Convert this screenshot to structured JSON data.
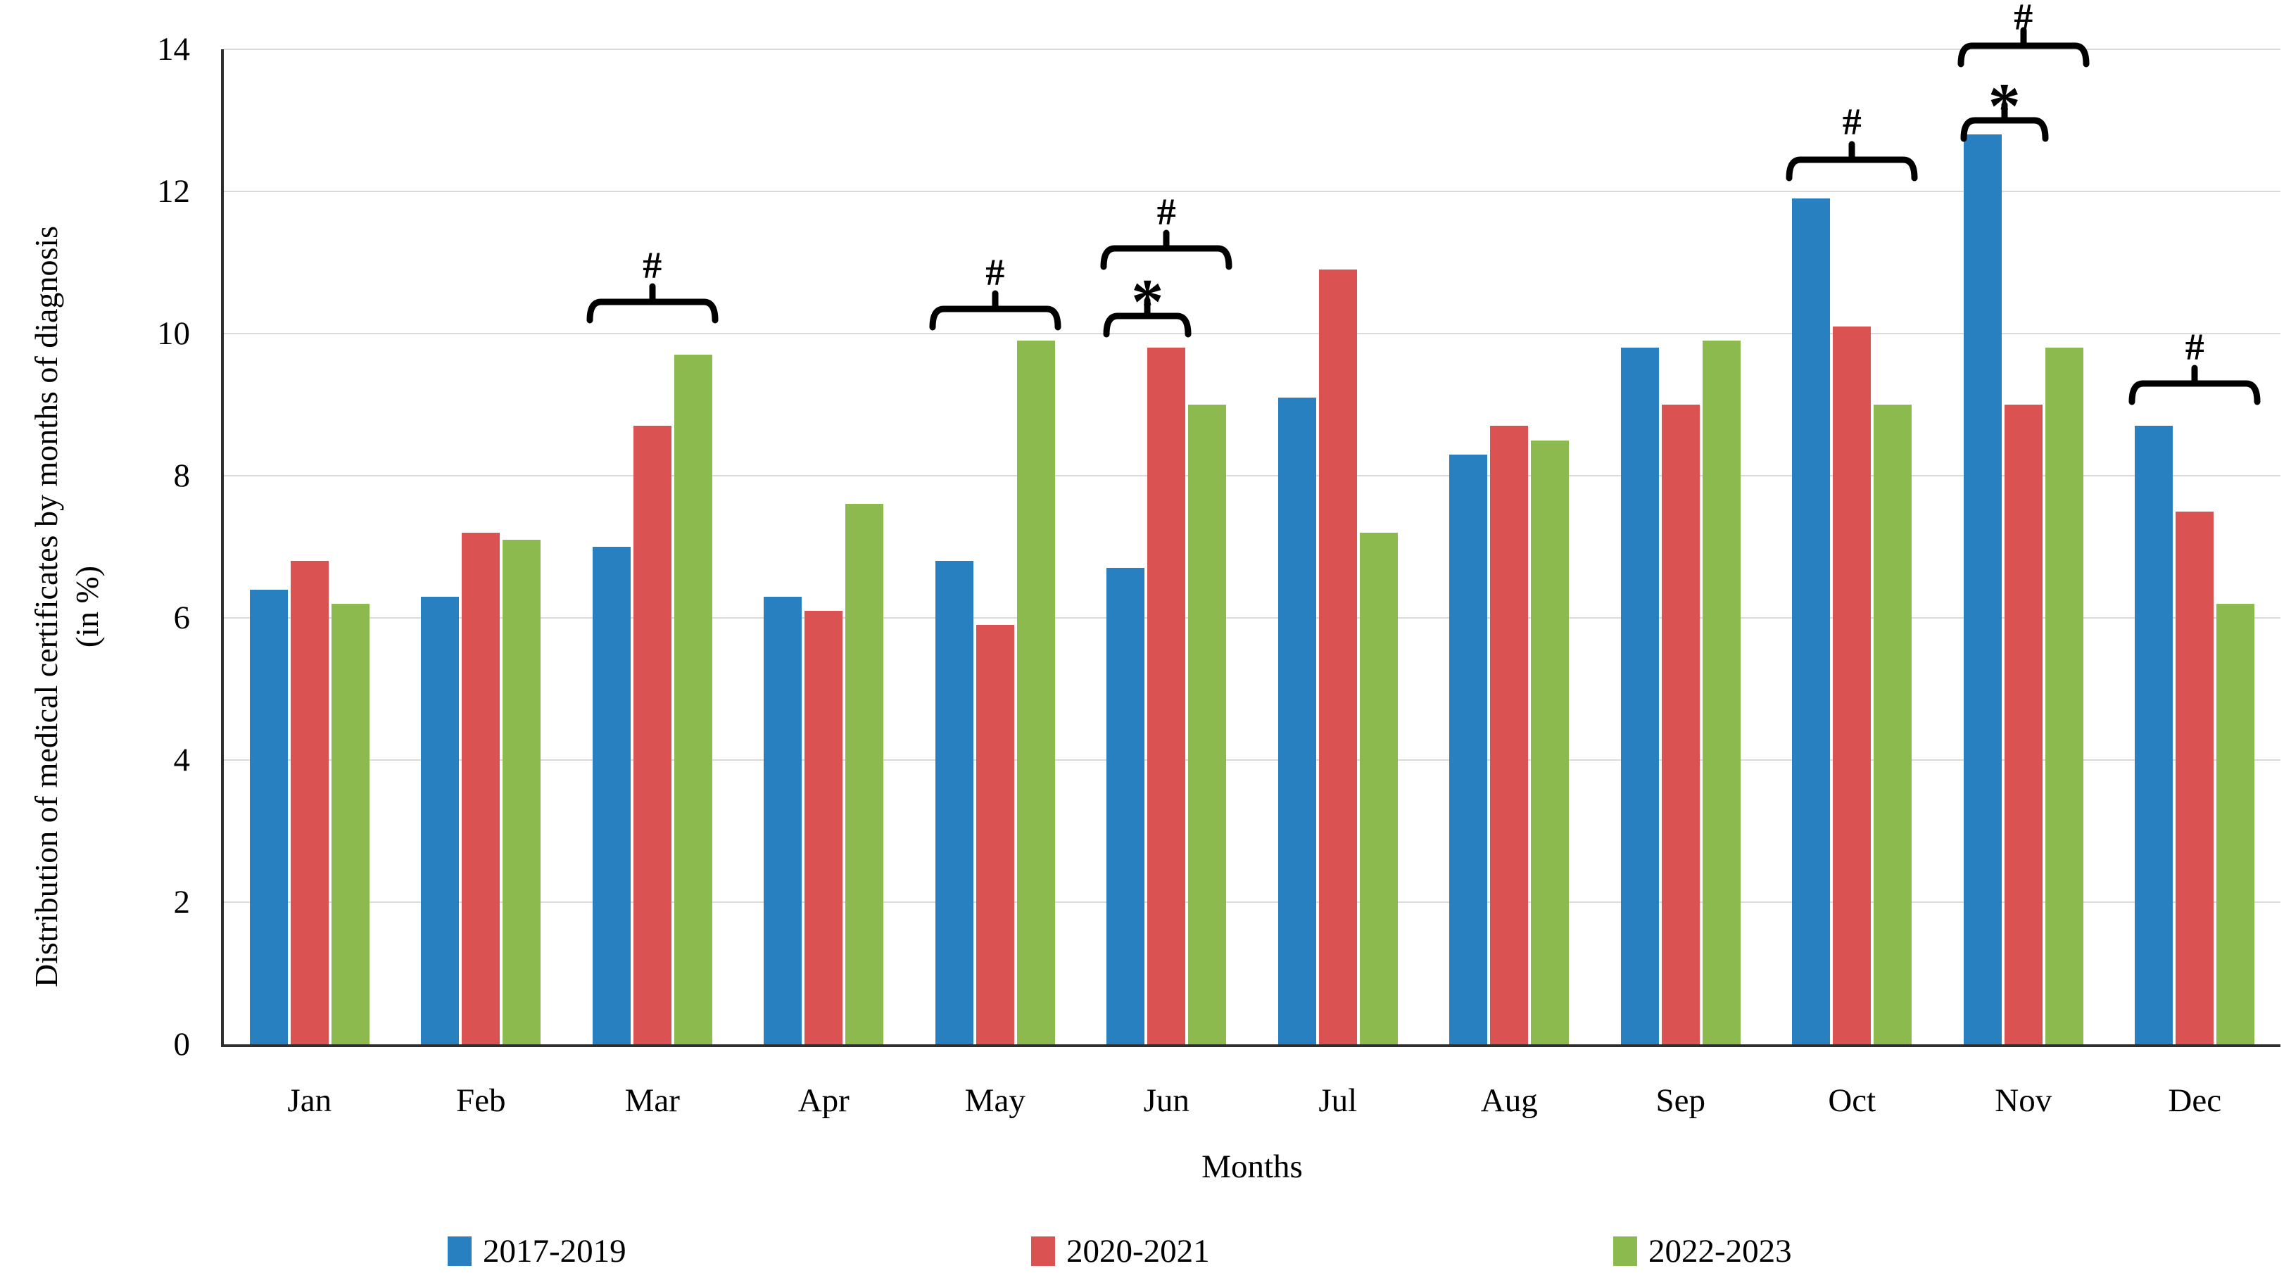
{
  "figure": {
    "y_axis_title_line1": "Distribution of medical certificates by months of diagnosis",
    "y_axis_title_line2": "(in %)",
    "x_axis_title": "Months"
  },
  "colors": {
    "axis": "#2E2E2E",
    "gridline": "#DADADA",
    "series_blue": "#2980C0",
    "series_red": "#DA5352",
    "series_green": "#8CBA4F",
    "annotation": "#000000"
  },
  "chart_data": {
    "type": "bar",
    "title": "",
    "xlabel": "Months",
    "ylabel": "Distribution of medical certificates by months of diagnosis (in %)",
    "ylim": [
      0,
      14
    ],
    "yticks": [
      0,
      2,
      4,
      6,
      8,
      10,
      12,
      14
    ],
    "grid": true,
    "legend_position": "bottom",
    "categories": [
      "Jan",
      "Feb",
      "Mar",
      "Apr",
      "May",
      "Jun",
      "Jul",
      "Aug",
      "Sep",
      "Oct",
      "Nov",
      "Dec"
    ],
    "series": [
      {
        "name": "2017-2019",
        "color": "#2980C0",
        "values": [
          6.4,
          6.3,
          7.0,
          6.3,
          6.8,
          6.7,
          9.1,
          8.3,
          9.8,
          11.9,
          12.8,
          8.7
        ]
      },
      {
        "name": "2020-2021",
        "color": "#DA5352",
        "values": [
          6.8,
          7.2,
          8.7,
          6.1,
          5.9,
          9.8,
          10.9,
          8.7,
          9.0,
          10.1,
          9.0,
          7.5
        ]
      },
      {
        "name": "2022-2023",
        "color": "#8CBA4F",
        "values": [
          6.2,
          7.1,
          9.7,
          7.6,
          9.9,
          9.0,
          7.2,
          8.5,
          9.9,
          9.0,
          9.8,
          6.2
        ]
      }
    ],
    "annotations": [
      {
        "month": "Mar",
        "span": "all",
        "symbol": "#",
        "line_y": 10.45,
        "symbol_y": 10.95
      },
      {
        "month": "May",
        "span": "all",
        "symbol": "#",
        "line_y": 10.35,
        "symbol_y": 10.85
      },
      {
        "month": "Jun",
        "span": "first-two",
        "symbol": "*",
        "line_y": 10.25,
        "symbol_y": 10.72
      },
      {
        "month": "Jun",
        "span": "all",
        "symbol": "#",
        "line_y": 11.2,
        "symbol_y": 11.7
      },
      {
        "month": "Oct",
        "span": "all",
        "symbol": "#",
        "line_y": 12.45,
        "symbol_y": 12.97
      },
      {
        "month": "Nov",
        "span": "first-two",
        "symbol": "*",
        "line_y": 13.0,
        "symbol_y": 13.48
      },
      {
        "month": "Nov",
        "span": "all",
        "symbol": "#",
        "line_y": 14.05,
        "symbol_y": 14.45
      },
      {
        "month": "Dec",
        "span": "all",
        "symbol": "#",
        "line_y": 9.3,
        "symbol_y": 9.8
      }
    ]
  }
}
